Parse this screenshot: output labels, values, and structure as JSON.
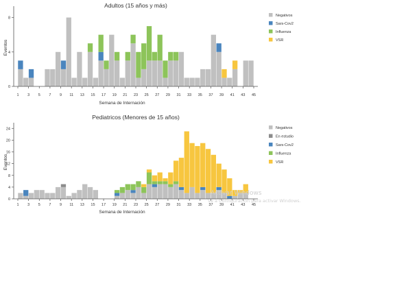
{
  "colors": {
    "negativos": "#c0c0c0",
    "en_estudio": "#8c8c8c",
    "sars_cov2": "#4a85be",
    "influenza": "#8dc45a",
    "vsr": "#f7c63f",
    "axis": "#555555",
    "text": "#333333"
  },
  "watermark": {
    "main": "Activar Windows",
    "sub": "Ve a Configuración para activar Windows."
  },
  "chart_data": [
    {
      "type": "bar",
      "stacked": true,
      "title": "Adultos (15 años y más)",
      "xlabel": "Semana de Internación",
      "ylabel": "Eventos",
      "x": [
        1,
        2,
        3,
        4,
        5,
        6,
        7,
        8,
        9,
        10,
        11,
        12,
        13,
        14,
        15,
        16,
        17,
        18,
        19,
        20,
        21,
        22,
        23,
        24,
        25,
        26,
        27,
        28,
        29,
        30,
        31,
        32,
        33,
        34,
        35,
        36,
        37,
        38,
        39,
        40,
        41,
        42,
        43,
        44
      ],
      "x_ticks": [
        1,
        3,
        5,
        7,
        9,
        11,
        13,
        15,
        17,
        19,
        21,
        23,
        25,
        27,
        29,
        31,
        33,
        35,
        37,
        39,
        41,
        43,
        45
      ],
      "ylim": [
        0,
        9
      ],
      "y_ticks": [
        0,
        4,
        8
      ],
      "legend_position": "right",
      "series": [
        {
          "name": "Negativos",
          "color_key": "negativos",
          "values": [
            2,
            1,
            1,
            0,
            0,
            2,
            2,
            4,
            2,
            8,
            1,
            4,
            1,
            4,
            1,
            3,
            2,
            6,
            3,
            1,
            3,
            5,
            1,
            2,
            3,
            3,
            3,
            1,
            3,
            3,
            4,
            1,
            1,
            1,
            2,
            2,
            6,
            4,
            1,
            1,
            2,
            0,
            3,
            3
          ]
        },
        {
          "name": "Sars-Cov2",
          "color_key": "sars_cov2",
          "values": [
            1,
            0,
            1,
            0,
            0,
            0,
            0,
            0,
            1,
            0,
            0,
            0,
            0,
            0,
            0,
            1,
            0,
            0,
            0,
            0,
            0,
            0,
            0,
            0,
            0,
            0,
            0,
            0,
            0,
            0,
            0,
            0,
            0,
            0,
            0,
            0,
            0,
            1,
            0,
            0,
            0,
            0,
            0,
            0
          ]
        },
        {
          "name": "Influenza",
          "color_key": "influenza",
          "values": [
            0,
            0,
            0,
            0,
            0,
            0,
            0,
            0,
            0,
            0,
            0,
            0,
            0,
            1,
            0,
            2,
            1,
            0,
            1,
            0,
            1,
            1,
            3,
            3,
            4,
            1,
            3,
            2,
            1,
            1,
            0,
            0,
            0,
            0,
            0,
            0,
            0,
            0,
            0,
            0,
            0,
            0,
            0,
            0
          ]
        },
        {
          "name": "VSR",
          "color_key": "vsr",
          "values": [
            0,
            0,
            0,
            0,
            0,
            0,
            0,
            0,
            0,
            0,
            0,
            0,
            0,
            0,
            0,
            0,
            0,
            0,
            0,
            0,
            0,
            0,
            0,
            0,
            0,
            0,
            0,
            0,
            0,
            0,
            0,
            0,
            0,
            0,
            0,
            0,
            0,
            0,
            1,
            0,
            1,
            0,
            0,
            0
          ]
        }
      ]
    },
    {
      "type": "bar",
      "stacked": true,
      "title": "Pediatricos (Menores de 15 años)",
      "xlabel": "Semana de Internación",
      "ylabel": "Eventos",
      "x": [
        1,
        2,
        3,
        4,
        5,
        6,
        7,
        8,
        9,
        10,
        11,
        12,
        13,
        14,
        15,
        16,
        17,
        18,
        19,
        20,
        21,
        22,
        23,
        24,
        25,
        26,
        27,
        28,
        29,
        30,
        31,
        32,
        33,
        34,
        35,
        36,
        37,
        38,
        39,
        40,
        41,
        42,
        43,
        44
      ],
      "x_ticks": [
        1,
        3,
        5,
        7,
        9,
        11,
        13,
        15,
        17,
        19,
        21,
        23,
        25,
        27,
        29,
        31,
        33,
        35,
        37,
        39,
        41,
        43,
        45
      ],
      "ylim": [
        0,
        25
      ],
      "y_ticks": [
        0,
        4,
        8,
        12,
        16,
        20,
        24
      ],
      "legend_position": "right",
      "series": [
        {
          "name": "Negativos",
          "color_key": "negativos",
          "values": [
            2,
            1,
            2,
            3,
            3,
            2,
            2,
            4,
            4,
            1,
            2,
            3,
            5,
            4,
            3,
            0,
            0,
            0,
            1,
            2,
            3,
            2,
            4,
            2,
            5,
            4,
            5,
            5,
            4,
            5,
            3,
            2,
            4,
            2,
            3,
            2,
            2,
            3,
            2,
            0,
            1,
            2,
            2,
            0
          ]
        },
        {
          "name": "En estudio",
          "color_key": "en_estudio",
          "values": [
            0,
            0,
            0,
            0,
            0,
            0,
            0,
            0,
            1,
            0,
            0,
            0,
            0,
            0,
            0,
            0,
            0,
            0,
            0,
            0,
            0,
            0,
            0,
            0,
            0,
            0,
            0,
            0,
            0,
            0,
            0,
            0,
            0,
            0,
            0,
            0,
            0,
            0,
            0,
            0,
            0,
            0,
            0,
            0
          ]
        },
        {
          "name": "Sars-Cov2",
          "color_key": "sars_cov2",
          "values": [
            0,
            2,
            0,
            0,
            0,
            0,
            0,
            0,
            0,
            0,
            0,
            0,
            0,
            0,
            0,
            0,
            0,
            0,
            1,
            0,
            0,
            1,
            0,
            0,
            0,
            1,
            0,
            0,
            0,
            0,
            1,
            0,
            0,
            0,
            1,
            0,
            0,
            1,
            0,
            1,
            0,
            0,
            0,
            0
          ]
        },
        {
          "name": "Influenza",
          "color_key": "influenza",
          "values": [
            0,
            0,
            0,
            0,
            0,
            0,
            0,
            0,
            0,
            0,
            0,
            0,
            0,
            0,
            0,
            0,
            0,
            0,
            1,
            2,
            2,
            2,
            2,
            2,
            4,
            1,
            1,
            1,
            1,
            1,
            0,
            0,
            0,
            0,
            0,
            0,
            0,
            0,
            0,
            0,
            0,
            0,
            0,
            0
          ]
        },
        {
          "name": "VSR",
          "color_key": "vsr",
          "values": [
            0,
            0,
            0,
            0,
            0,
            0,
            0,
            0,
            0,
            0,
            0,
            0,
            0,
            0,
            0,
            0,
            0,
            0,
            0,
            0,
            0,
            0,
            0,
            1,
            1,
            2,
            3,
            1,
            4,
            7,
            10,
            21,
            15,
            16,
            15,
            15,
            13,
            8,
            8,
            6,
            2,
            1,
            3,
            0
          ]
        }
      ]
    }
  ]
}
